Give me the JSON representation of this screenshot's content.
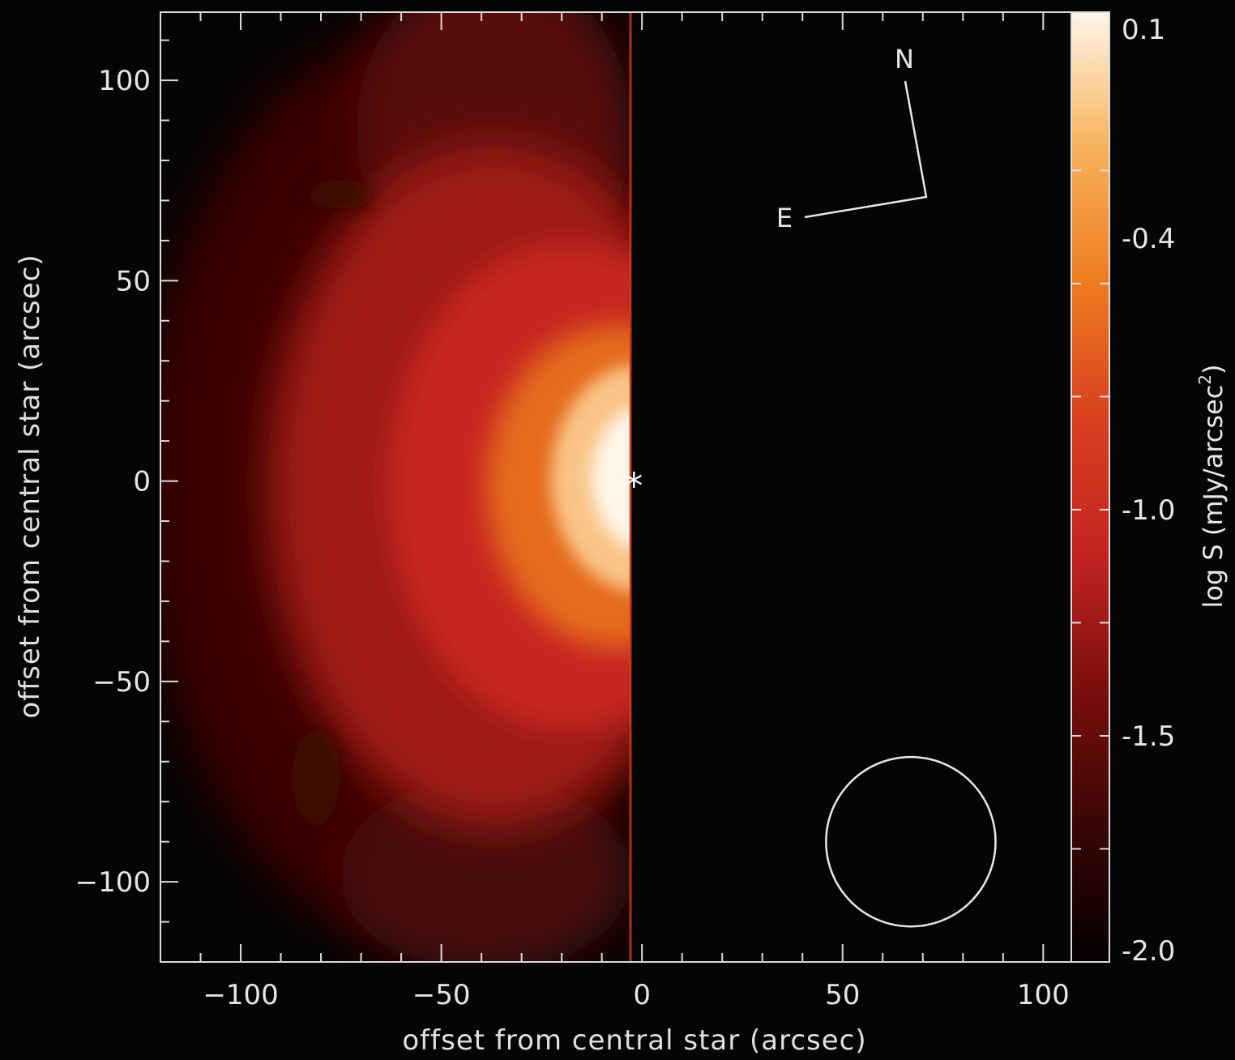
{
  "chart_data": {
    "type": "heatmap",
    "title": "",
    "xlabel": "offset from central star (arcsec)",
    "ylabel": "offset from central star (arcsec)",
    "xlim": [
      -120,
      107
    ],
    "ylim": [
      -120,
      117
    ],
    "x_ticks": [
      -100,
      -50,
      0,
      50,
      100
    ],
    "y_ticks": [
      -100,
      -50,
      0,
      50,
      100
    ],
    "x_tick_labels": [
      "−100",
      "−50",
      "0",
      "50",
      "100"
    ],
    "y_tick_labels": [
      "−100",
      "−50",
      "0",
      "50",
      "100"
    ],
    "emission_edge_x": -4,
    "emission_peak": {
      "x": -10,
      "y": -5,
      "value": 0.1
    },
    "regions": [
      {
        "shape": "bright core",
        "x": -12,
        "y": -5,
        "level": 0.1
      },
      {
        "shape": "inner glow",
        "x": -18,
        "y": -8,
        "level": -0.4
      },
      {
        "shape": "main lobe",
        "x": -25,
        "y": 0,
        "level": -1.0
      },
      {
        "shape": "outer halo",
        "x": -45,
        "y": 0,
        "level": -1.6
      }
    ],
    "colorbar": {
      "label_prefix": "log S (mJy/arcsec",
      "label_sup": "2",
      "label_suffix": ")",
      "range": [
        -2.0,
        0.1
      ],
      "tick_values": [
        0.1,
        -0.4,
        -1.0,
        -1.5,
        -2.0
      ],
      "tick_labels": [
        "0.1",
        "-0.4",
        "-1.0",
        "-1.5",
        "-2.0"
      ],
      "colors": [
        "#050000",
        "#3a0605",
        "#7a0f0c",
        "#c42422",
        "#d8401f",
        "#ee7a1f",
        "#f7b15a",
        "#fff5e8"
      ]
    },
    "star_marker": {
      "symbol": "*",
      "x": -2,
      "y": -1
    },
    "compass": {
      "north_label": "N",
      "east_label": "E"
    },
    "beam": {
      "x": 67,
      "y": -90,
      "radius_arcsec": 22
    }
  }
}
